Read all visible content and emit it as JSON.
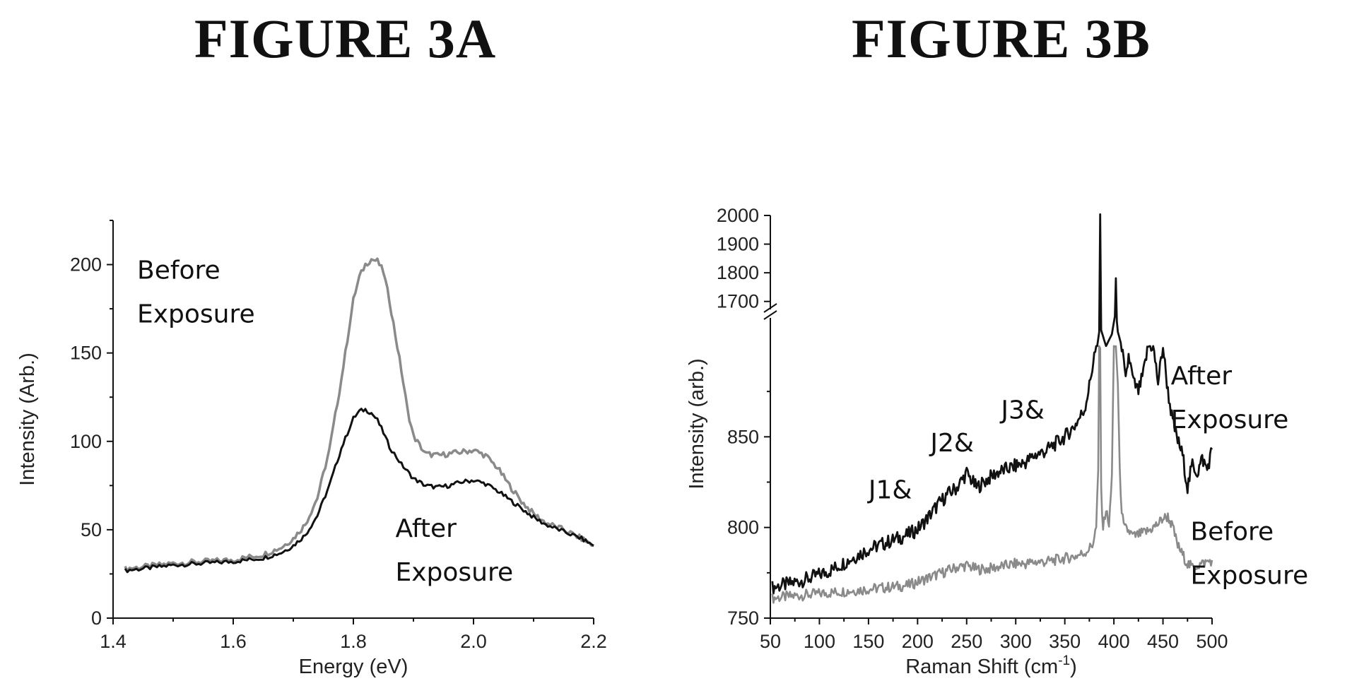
{
  "figure_a": {
    "title": "FIGURE 3A"
  },
  "figure_b": {
    "title": "FIGURE 3B"
  },
  "chart_data": [
    {
      "type": "line",
      "title": "FIGURE 3A",
      "xlabel": "Energy (eV)",
      "ylabel": "Intensity (Arb.)",
      "xlim": [
        1.4,
        2.2
      ],
      "ylim": [
        0,
        225
      ],
      "xticks": [
        1.4,
        1.6,
        1.8,
        2.0,
        2.2
      ],
      "xtick_labels": [
        "1.4",
        "1.6",
        "1.8",
        "2.0",
        "2.2"
      ],
      "yticks": [
        0,
        50,
        100,
        150,
        200
      ],
      "ytick_labels": [
        "0",
        "50",
        "100",
        "150",
        "200"
      ],
      "grid": false,
      "annotations": [
        {
          "text": [
            "Before",
            "Exposure"
          ],
          "x": 1.44,
          "y": 192
        },
        {
          "text": [
            "After",
            "Exposure"
          ],
          "x": 1.87,
          "y": 46
        }
      ],
      "series": [
        {
          "color": "#8a8a8a",
          "x": [
            1.42,
            1.45,
            1.5,
            1.55,
            1.6,
            1.65,
            1.68,
            1.7,
            1.72,
            1.74,
            1.76,
            1.78,
            1.8,
            1.81,
            1.82,
            1.83,
            1.84,
            1.85,
            1.86,
            1.87,
            1.88,
            1.89,
            1.9,
            1.92,
            1.94,
            1.96,
            1.98,
            2.0,
            2.02,
            2.04,
            2.06,
            2.08,
            2.1,
            2.12,
            2.15,
            2.18,
            2.2
          ],
          "y": [
            28,
            29,
            31,
            32,
            33,
            36,
            40,
            45,
            53,
            68,
            95,
            135,
            180,
            193,
            200,
            203,
            202,
            196,
            180,
            160,
            140,
            118,
            103,
            93,
            92,
            93,
            94,
            95,
            92,
            85,
            75,
            66,
            59,
            54,
            50,
            45,
            41
          ]
        },
        {
          "color": "#111111",
          "x": [
            1.42,
            1.45,
            1.5,
            1.55,
            1.6,
            1.65,
            1.68,
            1.7,
            1.72,
            1.74,
            1.76,
            1.78,
            1.8,
            1.81,
            1.82,
            1.83,
            1.84,
            1.85,
            1.86,
            1.88,
            1.9,
            1.92,
            1.94,
            1.96,
            1.98,
            2.0,
            2.02,
            2.04,
            2.06,
            2.08,
            2.1,
            2.12,
            2.15,
            2.18,
            2.2
          ],
          "y": [
            27,
            28,
            30,
            31,
            32,
            34,
            37,
            41,
            47,
            58,
            75,
            96,
            113,
            117,
            118,
            116,
            112,
            105,
            97,
            87,
            79,
            75,
            74,
            75,
            77,
            78,
            76,
            72,
            67,
            62,
            57,
            53,
            49,
            45,
            41
          ]
        }
      ]
    },
    {
      "type": "line",
      "title": "FIGURE 3B",
      "xlabel": "Raman Shift (cm",
      "xlabel_sup": "-1",
      "xlabel_end": ")",
      "ylabel": "Intensity (arb.)",
      "xlim": [
        50,
        500
      ],
      "ylim": [
        750,
        2000
      ],
      "y_axis_break": {
        "lower": [
          750,
          900
        ],
        "upper": [
          1650,
          2000
        ]
      },
      "xticks": [
        50,
        100,
        150,
        200,
        250,
        300,
        350,
        400,
        450,
        500
      ],
      "xtick_labels": [
        "50",
        "100",
        "150",
        "200",
        "250",
        "300",
        "350",
        "400",
        "450",
        "500"
      ],
      "yticks_lower": [
        750,
        800,
        850
      ],
      "ytick_labels_lower": [
        "750",
        "800",
        "850"
      ],
      "yticks_upper": [
        1700,
        1800,
        1900,
        2000
      ],
      "ytick_labels_upper": [
        "1700",
        "1800",
        "1900",
        "2000"
      ],
      "grid": false,
      "annotations": [
        {
          "text": [
            "J1&"
          ],
          "x": 150,
          "y": 816
        },
        {
          "text": [
            "J2&"
          ],
          "x": 213,
          "y": 842
        },
        {
          "text": [
            "J3&"
          ],
          "x": 285,
          "y": 860
        },
        {
          "text": [
            "After",
            "Exposure"
          ],
          "x": 458,
          "y": 879
        },
        {
          "text": [
            "Before",
            "Exposure"
          ],
          "x": 478,
          "y": 793
        }
      ],
      "series": [
        {
          "color": "#111111",
          "x": [
            52,
            70,
            90,
            110,
            130,
            150,
            170,
            190,
            200,
            210,
            220,
            230,
            240,
            250,
            260,
            270,
            280,
            290,
            300,
            310,
            320,
            330,
            340,
            350,
            360,
            370,
            375,
            380,
            383,
            385,
            386,
            387,
            392,
            398,
            402,
            404,
            408,
            412,
            415,
            420,
            425,
            430,
            435,
            440,
            445,
            450,
            455,
            460,
            465,
            470,
            475,
            480,
            485,
            490,
            495,
            500
          ],
          "y": [
            767,
            769,
            772,
            776,
            782,
            788,
            792,
            796,
            799,
            805,
            812,
            818,
            822,
            830,
            822,
            826,
            830,
            832,
            834,
            836,
            840,
            842,
            846,
            850,
            856,
            865,
            878,
            895,
            900,
            1250,
            2000,
            1300,
            900,
            1200,
            1780,
            1250,
            900,
            880,
            895,
            880,
            875,
            885,
            900,
            900,
            880,
            900,
            875,
            858,
            848,
            840,
            822,
            835,
            830,
            838,
            832,
            843
          ]
        },
        {
          "color": "#8a8a8a",
          "x": [
            52,
            70,
            90,
            110,
            130,
            150,
            170,
            190,
            200,
            210,
            220,
            230,
            240,
            250,
            260,
            270,
            280,
            290,
            300,
            310,
            320,
            330,
            340,
            350,
            360,
            370,
            378,
            382,
            384,
            385,
            386,
            387,
            389,
            392,
            395,
            398,
            400,
            402,
            404,
            406,
            408,
            410,
            415,
            420,
            425,
            430,
            435,
            440,
            445,
            450,
            455,
            460,
            465,
            470,
            475,
            480,
            490,
            500
          ],
          "y": [
            761,
            762,
            763,
            764,
            765,
            766,
            767,
            768,
            770,
            772,
            774,
            776,
            778,
            779,
            777,
            777,
            778,
            779,
            780,
            780,
            781,
            781,
            782,
            783,
            784,
            786,
            790,
            800,
            830,
            900,
            900,
            820,
            800,
            810,
            800,
            830,
            900,
            900,
            880,
            830,
            810,
            800,
            798,
            795,
            796,
            797,
            798,
            800,
            802,
            805,
            806,
            800,
            790,
            785,
            780,
            778,
            780,
            782
          ]
        }
      ]
    }
  ]
}
